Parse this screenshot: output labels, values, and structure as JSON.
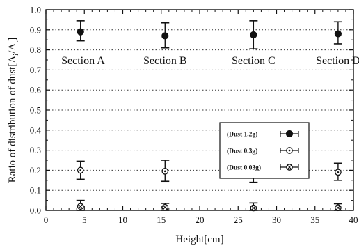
{
  "chart_data": {
    "type": "scatter",
    "xlabel": "Height[cm]",
    "ylabel": "Ratio of distribution of dust[A",
    "ylabel_sub1": "i",
    "ylabel_mid": "/A",
    "ylabel_sub2": "t",
    "ylabel_end": "]",
    "xlim": [
      0,
      40
    ],
    "ylim": [
      0,
      1.0
    ],
    "xticks": [
      "0",
      "5",
      "10",
      "15",
      "20",
      "25",
      "30",
      "35",
      "40"
    ],
    "yticks": [
      "0.0",
      "0.1",
      "0.2",
      "0.3",
      "0.4",
      "0.5",
      "0.6",
      "0.7",
      "0.8",
      "0.9",
      "1.0"
    ],
    "grid": "dotted horizontal",
    "legend_position": "right",
    "sections": [
      {
        "label": "Section A",
        "x": 2
      },
      {
        "label": "Section B",
        "x": 15.5
      },
      {
        "label": "Section C",
        "x": 27
      },
      {
        "label": "Section D",
        "x": 38
      }
    ],
    "series": [
      {
        "name": "(Dust 1.2g)",
        "marker": "filled-circle",
        "x": [
          4.5,
          15.5,
          27,
          38
        ],
        "y": [
          0.89,
          0.87,
          0.875,
          0.88
        ],
        "err_low": [
          0.045,
          0.06,
          0.07,
          0.05
        ],
        "err_high": [
          0.055,
          0.065,
          0.07,
          0.06
        ]
      },
      {
        "name": "(Dust 0.3g)",
        "marker": "dotted-circle",
        "x": [
          4.5,
          15.5,
          27,
          38
        ],
        "y": [
          0.2,
          0.195,
          0.19,
          0.19
        ],
        "err_low": [
          0.045,
          0.05,
          0.05,
          0.04
        ],
        "err_high": [
          0.045,
          0.055,
          0.07,
          0.045
        ]
      },
      {
        "name": "(Dust 0.03g)",
        "marker": "crossed-circle",
        "x": [
          4.5,
          15.5,
          27,
          38
        ],
        "y": [
          0.02,
          0.015,
          0.012,
          0.013
        ],
        "err_low": [
          0.02,
          0.015,
          0.012,
          0.013
        ],
        "err_high": [
          0.03,
          0.02,
          0.025,
          0.02
        ]
      }
    ]
  }
}
